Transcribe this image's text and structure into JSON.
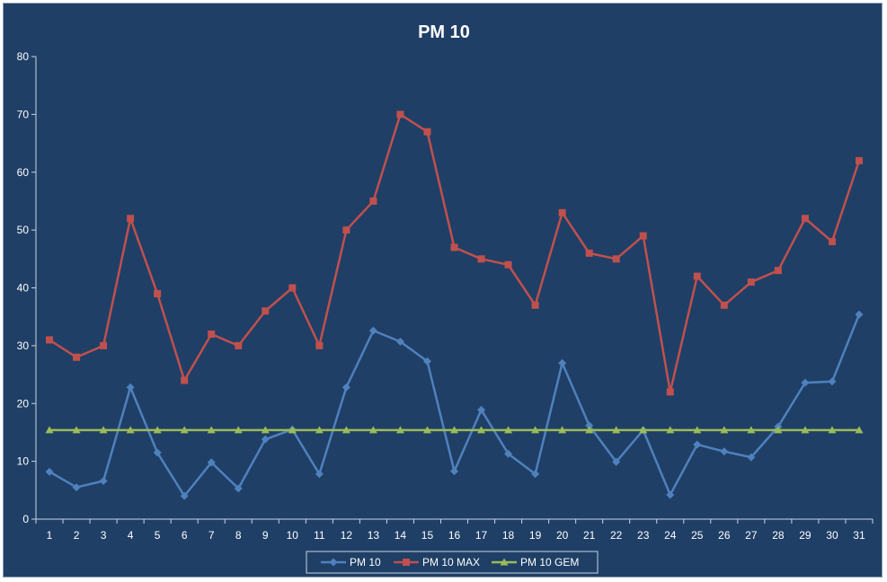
{
  "chart_data": {
    "type": "line",
    "title": "PM 10",
    "xlabel": "",
    "ylabel": "",
    "categories": [
      "1",
      "2",
      "3",
      "4",
      "5",
      "6",
      "7",
      "8",
      "9",
      "10",
      "11",
      "12",
      "13",
      "14",
      "15",
      "16",
      "17",
      "18",
      "19",
      "20",
      "21",
      "22",
      "23",
      "24",
      "25",
      "26",
      "27",
      "28",
      "29",
      "30",
      "31"
    ],
    "ylim": [
      0,
      80
    ],
    "yticks": [
      0,
      10,
      20,
      30,
      40,
      50,
      60,
      70,
      80
    ],
    "grid": false,
    "legend_position": "bottom",
    "series": [
      {
        "name": "PM 10",
        "color": "#4f81bd",
        "marker": "diamond",
        "values": [
          8.2,
          5.5,
          6.6,
          22.8,
          11.5,
          4.0,
          9.8,
          5.3,
          13.8,
          15.5,
          7.8,
          22.8,
          32.6,
          30.7,
          27.3,
          8.3,
          18.9,
          11.3,
          7.8,
          27.0,
          16.2,
          9.9,
          15.4,
          4.2,
          12.9,
          11.7,
          10.7,
          16.0,
          23.6,
          23.8,
          35.4
        ]
      },
      {
        "name": "PM 10 MAX",
        "color": "#c0504d",
        "marker": "square",
        "values": [
          31,
          28,
          30,
          52,
          39,
          24,
          32,
          30,
          36,
          40,
          30,
          50,
          55,
          70,
          67,
          47,
          45,
          44,
          37,
          53,
          46,
          45,
          49,
          22,
          42,
          37,
          41,
          43,
          52,
          48,
          62
        ]
      },
      {
        "name": "PM 10 GEM",
        "color": "#9bbb59",
        "marker": "triangle",
        "values": [
          15.4,
          15.4,
          15.4,
          15.4,
          15.4,
          15.4,
          15.4,
          15.4,
          15.4,
          15.4,
          15.4,
          15.4,
          15.4,
          15.4,
          15.4,
          15.4,
          15.4,
          15.4,
          15.4,
          15.4,
          15.4,
          15.4,
          15.4,
          15.4,
          15.4,
          15.4,
          15.4,
          15.4,
          15.4,
          15.4,
          15.4
        ]
      }
    ]
  },
  "colors": {
    "background": "#1f3f66",
    "axis": "#c8d4e3",
    "text": "#ffffff"
  }
}
